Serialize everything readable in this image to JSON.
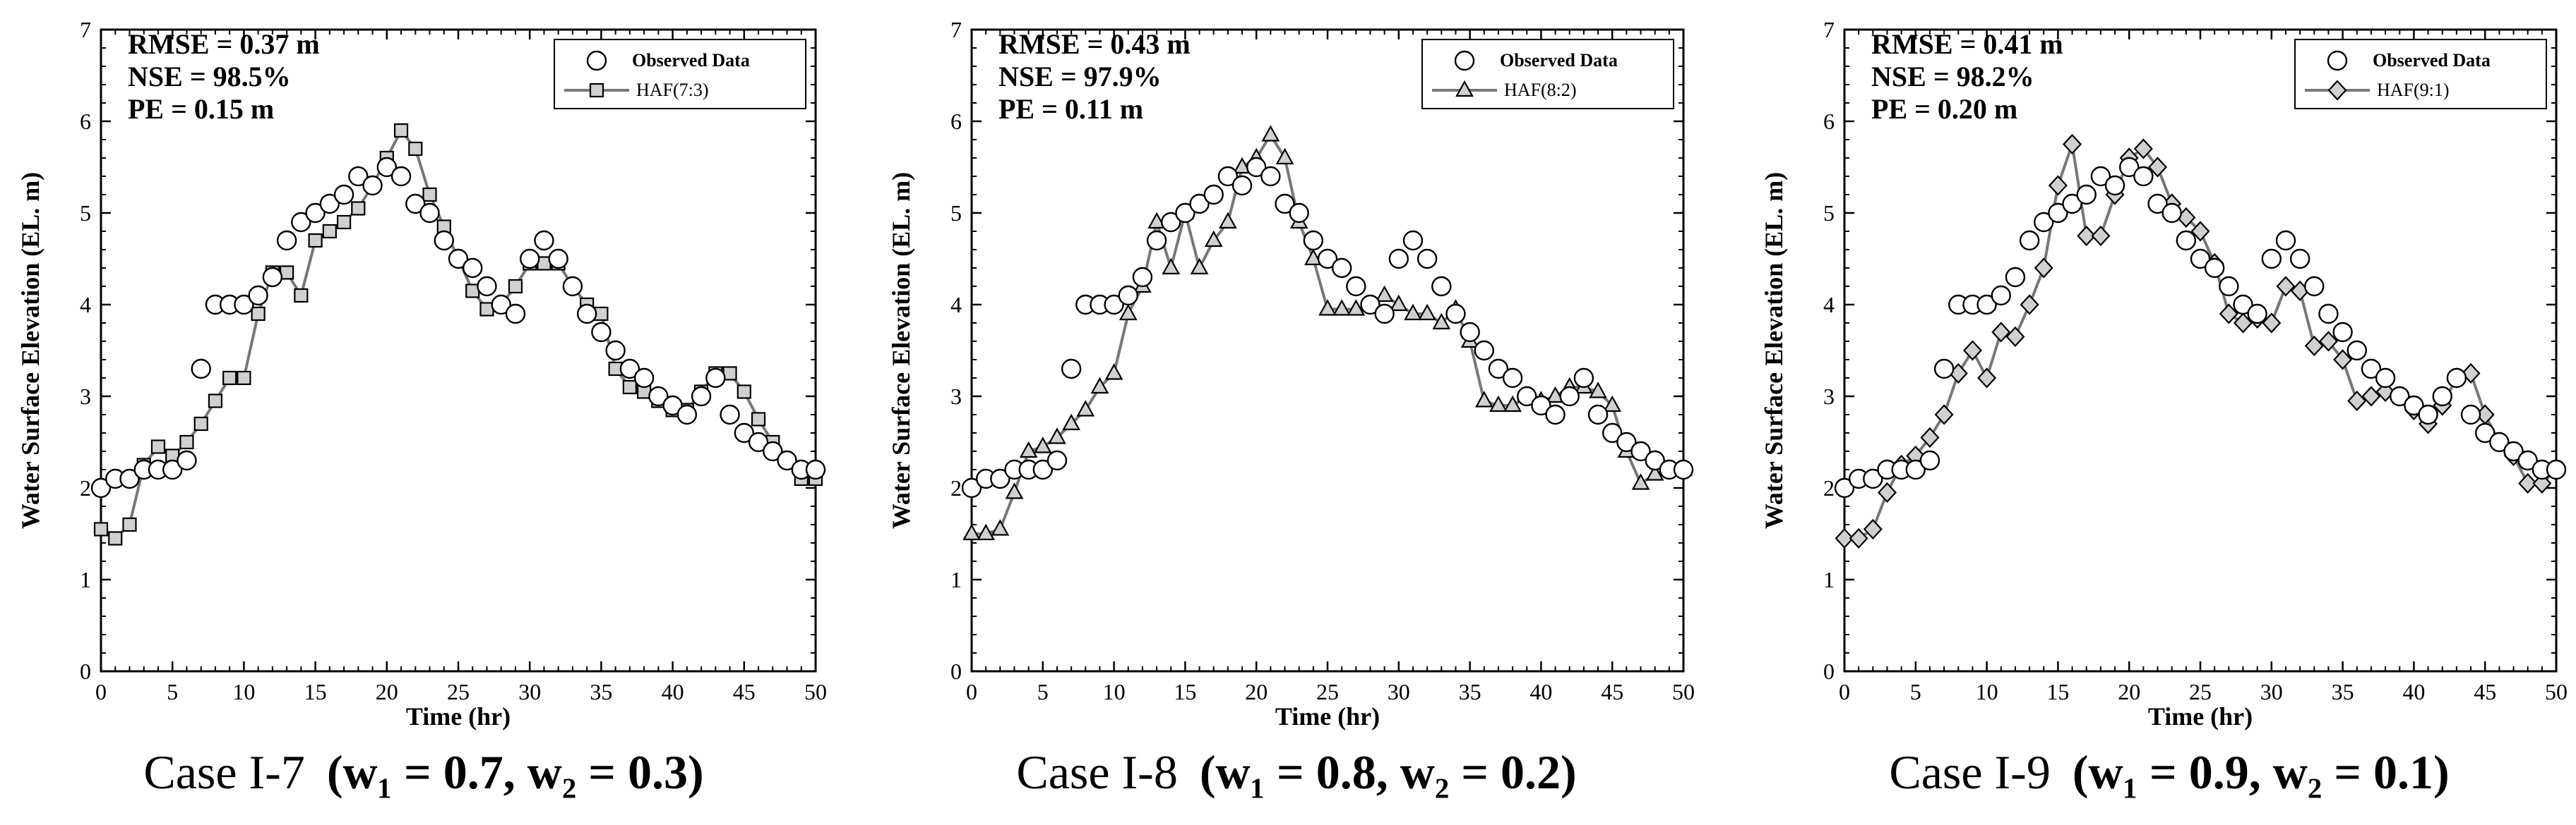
{
  "chart_data": [
    {
      "type": "scatter",
      "title": "",
      "caption": "Case I-7 (w1 = 0.7, w2 = 0.3)",
      "caption_case": "Case I-7",
      "caption_eq": "(w₁ = 0.7, w₂ = 0.3)",
      "xlabel": "Time (hr)",
      "ylabel": "Water Surface Elevation (EL. m)",
      "xlim": [
        0,
        50
      ],
      "ylim": [
        0,
        7
      ],
      "xticks": [
        0,
        5,
        10,
        15,
        20,
        25,
        30,
        35,
        40,
        45,
        50
      ],
      "yticks": [
        0,
        1,
        2,
        3,
        4,
        5,
        6,
        7
      ],
      "stats": [
        "RMSE = 0.37 m",
        "NSE = 98.5%",
        "PE = 0.15 m"
      ],
      "legend": [
        "Observed Data",
        "HAF(7:3)"
      ],
      "series": [
        {
          "name": "Observed Data",
          "marker": "circle",
          "x": [
            0,
            1,
            2,
            3,
            4,
            5,
            6,
            7,
            8,
            9,
            10,
            11,
            12,
            13,
            14,
            15,
            16,
            17,
            18,
            19,
            20,
            21,
            22,
            23,
            24,
            25,
            26,
            27,
            28,
            29,
            30,
            31,
            32,
            33,
            34,
            35,
            36,
            37,
            38,
            39,
            40,
            41,
            42,
            43,
            44,
            45,
            46,
            47,
            48,
            49,
            50
          ],
          "y": [
            2.0,
            2.1,
            2.1,
            2.2,
            2.2,
            2.2,
            2.3,
            3.3,
            4.0,
            4.0,
            4.0,
            4.1,
            4.3,
            4.7,
            4.9,
            5.0,
            5.1,
            5.2,
            5.4,
            5.3,
            5.5,
            5.4,
            5.1,
            5.0,
            4.7,
            4.5,
            4.4,
            4.2,
            4.0,
            3.9,
            4.5,
            4.7,
            4.5,
            4.2,
            3.9,
            3.7,
            3.5,
            3.3,
            3.2,
            3.0,
            2.9,
            2.8,
            3.0,
            3.2,
            2.8,
            2.6,
            2.5,
            2.4,
            2.3,
            2.2,
            2.2
          ]
        },
        {
          "name": "HAF(7:3)",
          "marker": "square",
          "x": [
            0,
            1,
            2,
            3,
            4,
            5,
            6,
            7,
            8,
            9,
            10,
            11,
            12,
            13,
            14,
            15,
            16,
            17,
            18,
            19,
            20,
            21,
            22,
            23,
            24,
            25,
            26,
            27,
            28,
            29,
            30,
            31,
            32,
            33,
            34,
            35,
            36,
            37,
            38,
            39,
            40,
            41,
            42,
            43,
            44,
            45,
            46,
            47,
            48,
            49,
            50
          ],
          "y": [
            1.55,
            1.45,
            1.6,
            2.25,
            2.45,
            2.35,
            2.5,
            2.7,
            2.95,
            3.2,
            3.2,
            3.9,
            4.35,
            4.35,
            4.1,
            4.7,
            4.8,
            4.9,
            5.05,
            5.3,
            5.6,
            5.9,
            5.7,
            5.2,
            4.85,
            4.5,
            4.15,
            3.95,
            4.0,
            4.2,
            4.45,
            4.45,
            4.45,
            4.2,
            4.0,
            3.9,
            3.3,
            3.1,
            3.05,
            2.95,
            2.85,
            2.85,
            3.05,
            3.25,
            3.25,
            3.05,
            2.75,
            2.5,
            2.3,
            2.1,
            2.1
          ]
        }
      ]
    },
    {
      "type": "scatter",
      "title": "",
      "caption": "Case I-8 (w1 = 0.8, w2 = 0.2)",
      "caption_case": "Case I-8",
      "caption_eq": "(w₁ = 0.8, w₂ = 0.2)",
      "xlabel": "Time (hr)",
      "ylabel": "Water Surface Elevation (EL. m)",
      "xlim": [
        0,
        50
      ],
      "ylim": [
        0,
        7
      ],
      "xticks": [
        0,
        5,
        10,
        15,
        20,
        25,
        30,
        35,
        40,
        45,
        50
      ],
      "yticks": [
        0,
        1,
        2,
        3,
        4,
        5,
        6,
        7
      ],
      "stats": [
        "RMSE = 0.43 m",
        "NSE = 97.9%",
        "PE = 0.11 m"
      ],
      "legend": [
        "Observed Data",
        "HAF(8:2)"
      ],
      "series": [
        {
          "name": "Observed Data",
          "marker": "circle",
          "x": [
            0,
            1,
            2,
            3,
            4,
            5,
            6,
            7,
            8,
            9,
            10,
            11,
            12,
            13,
            14,
            15,
            16,
            17,
            18,
            19,
            20,
            21,
            22,
            23,
            24,
            25,
            26,
            27,
            28,
            29,
            30,
            31,
            32,
            33,
            34,
            35,
            36,
            37,
            38,
            39,
            40,
            41,
            42,
            43,
            44,
            45,
            46,
            47,
            48,
            49,
            50
          ],
          "y": [
            2.0,
            2.1,
            2.1,
            2.2,
            2.2,
            2.2,
            2.3,
            3.3,
            4.0,
            4.0,
            4.0,
            4.1,
            4.3,
            4.7,
            4.9,
            5.0,
            5.1,
            5.2,
            5.4,
            5.3,
            5.5,
            5.4,
            5.1,
            5.0,
            4.7,
            4.5,
            4.4,
            4.2,
            4.0,
            3.9,
            4.5,
            4.7,
            4.5,
            4.2,
            3.9,
            3.7,
            3.5,
            3.3,
            3.2,
            3.0,
            2.9,
            2.8,
            3.0,
            3.2,
            2.8,
            2.6,
            2.5,
            2.4,
            2.3,
            2.2,
            2.2
          ]
        },
        {
          "name": "HAF(8:2)",
          "marker": "triangle",
          "x": [
            0,
            1,
            2,
            3,
            4,
            5,
            6,
            7,
            8,
            9,
            10,
            11,
            12,
            13,
            14,
            15,
            16,
            17,
            18,
            19,
            20,
            21,
            22,
            23,
            24,
            25,
            26,
            27,
            28,
            29,
            30,
            31,
            32,
            33,
            34,
            35,
            36,
            37,
            38,
            39,
            40,
            41,
            42,
            43,
            44,
            45,
            46,
            47,
            48,
            49,
            50
          ],
          "y": [
            1.5,
            1.5,
            1.55,
            1.95,
            2.4,
            2.45,
            2.55,
            2.7,
            2.85,
            3.1,
            3.25,
            3.9,
            4.2,
            4.9,
            4.4,
            5.0,
            4.4,
            4.7,
            4.9,
            5.5,
            5.6,
            5.85,
            5.6,
            4.9,
            4.5,
            3.95,
            3.95,
            3.95,
            4.0,
            4.1,
            4.0,
            3.9,
            3.9,
            3.8,
            3.95,
            3.6,
            2.95,
            2.9,
            2.9,
            3.0,
            2.95,
            3.0,
            3.1,
            3.1,
            3.05,
            2.9,
            2.4,
            2.05,
            2.15,
            2.2,
            2.2
          ]
        }
      ]
    },
    {
      "type": "scatter",
      "title": "",
      "caption": "Case I-9 (w1 = 0.9, w2 = 0.1)",
      "caption_case": "Case I-9",
      "caption_eq": "(w₁ = 0.9, w₂ = 0.1)",
      "xlabel": "Time (hr)",
      "ylabel": "Water Surface Elevation (EL. m)",
      "xlim": [
        0,
        50
      ],
      "ylim": [
        0,
        7
      ],
      "xticks": [
        0,
        5,
        10,
        15,
        20,
        25,
        30,
        35,
        40,
        45,
        50
      ],
      "yticks": [
        0,
        1,
        2,
        3,
        4,
        5,
        6,
        7
      ],
      "stats": [
        "RMSE = 0.41 m",
        "NSE = 98.2%",
        "PE = 0.20 m"
      ],
      "legend": [
        "Observed Data",
        "HAF(9:1)"
      ],
      "series": [
        {
          "name": "Observed Data",
          "marker": "circle",
          "x": [
            0,
            1,
            2,
            3,
            4,
            5,
            6,
            7,
            8,
            9,
            10,
            11,
            12,
            13,
            14,
            15,
            16,
            17,
            18,
            19,
            20,
            21,
            22,
            23,
            24,
            25,
            26,
            27,
            28,
            29,
            30,
            31,
            32,
            33,
            34,
            35,
            36,
            37,
            38,
            39,
            40,
            41,
            42,
            43,
            44,
            45,
            46,
            47,
            48,
            49,
            50
          ],
          "y": [
            2.0,
            2.1,
            2.1,
            2.2,
            2.2,
            2.2,
            2.3,
            3.3,
            4.0,
            4.0,
            4.0,
            4.1,
            4.3,
            4.7,
            4.9,
            5.0,
            5.1,
            5.2,
            5.4,
            5.3,
            5.5,
            5.4,
            5.1,
            5.0,
            4.7,
            4.5,
            4.4,
            4.2,
            4.0,
            3.9,
            4.5,
            4.7,
            4.5,
            4.2,
            3.9,
            3.7,
            3.5,
            3.3,
            3.2,
            3.0,
            2.9,
            2.8,
            3.0,
            3.2,
            2.8,
            2.6,
            2.5,
            2.4,
            2.3,
            2.2,
            2.2
          ]
        },
        {
          "name": "HAF(9:1)",
          "marker": "diamond",
          "x": [
            0,
            1,
            2,
            3,
            4,
            5,
            6,
            7,
            8,
            9,
            10,
            11,
            12,
            13,
            14,
            15,
            16,
            17,
            18,
            19,
            20,
            21,
            22,
            23,
            24,
            25,
            26,
            27,
            28,
            29,
            30,
            31,
            32,
            33,
            34,
            35,
            36,
            37,
            38,
            39,
            40,
            41,
            42,
            43,
            44,
            45,
            46,
            47,
            48,
            49,
            50
          ],
          "y": [
            1.45,
            1.45,
            1.55,
            1.95,
            2.25,
            2.35,
            2.55,
            2.8,
            3.25,
            3.5,
            3.2,
            3.7,
            3.65,
            4.0,
            4.4,
            5.3,
            5.75,
            4.75,
            4.75,
            5.2,
            5.6,
            5.7,
            5.5,
            5.1,
            4.95,
            4.8,
            4.45,
            3.9,
            3.8,
            3.85,
            3.8,
            4.2,
            4.15,
            3.55,
            3.6,
            3.4,
            2.95,
            3.0,
            3.05,
            3.0,
            2.85,
            2.7,
            2.9,
            3.2,
            3.25,
            2.8,
            2.5,
            2.35,
            2.05,
            2.05,
            2.2
          ]
        }
      ]
    }
  ]
}
